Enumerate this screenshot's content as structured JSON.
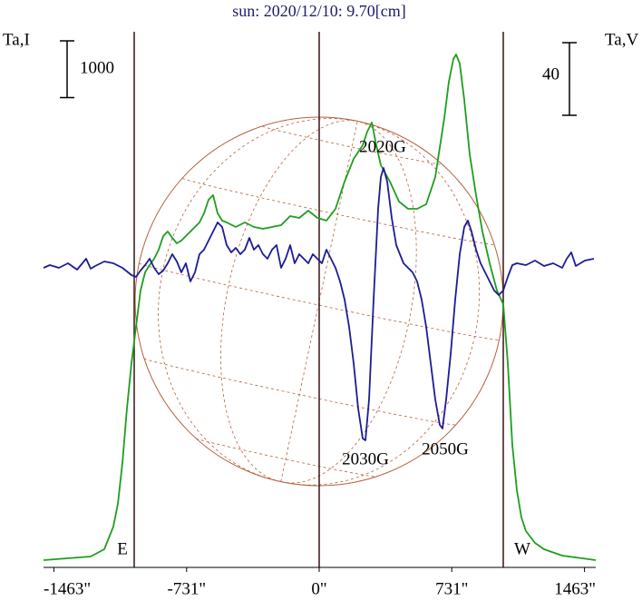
{
  "chart_data": {
    "type": "line",
    "title": "sun: 2020/12/10: 9.70[cm]",
    "y_label": "Ta,I",
    "y2_label": "Ta,V",
    "y_scale_bar": 1000,
    "y2_scale_bar": 40,
    "xlim": [
      -1520,
      1525
    ],
    "ylim": [
      -128,
      9472
    ],
    "y2lim": [
      -166,
      134
    ],
    "xticks": [
      {
        "value": -1463,
        "label": "-1463\""
      },
      {
        "value": -731,
        "label": "-731\""
      },
      {
        "value": 0,
        "label": "0\""
      },
      {
        "value": 731,
        "label": "731\""
      },
      {
        "value": 1463,
        "label": "1463\""
      }
    ],
    "vlines": [
      -1020,
      0,
      1015
    ],
    "limb_labels": [
      "E",
      "W"
    ],
    "annotations": [
      "2020G",
      "2030G",
      "2050G"
    ],
    "series": [
      {
        "color": "#1e9e1e",
        "axis": "y",
        "x": [
          -1520,
          -1260,
          -1185,
          -1135,
          -1110,
          -1085,
          -1060,
          -1035,
          -1010,
          -985,
          -960,
          -935,
          -910,
          -885,
          -860,
          -835,
          -810,
          -785,
          -760,
          -735,
          -710,
          -685,
          -660,
          -635,
          -610,
          -585,
          -560,
          -535,
          -510,
          -460,
          -410,
          -360,
          -310,
          -260,
          -210,
          -160,
          -110,
          -60,
          -10,
          40,
          90,
          140,
          190,
          240,
          265,
          290,
          315,
          340,
          390,
          440,
          490,
          540,
          590,
          640,
          690,
          715,
          740,
          755,
          775,
          800,
          830,
          865,
          900,
          940,
          980,
          1015,
          1040,
          1065,
          1090,
          1115,
          1140,
          1190,
          1240,
          1340,
          1525
        ],
        "values": [
          0,
          64,
          192,
          592,
          992,
          1712,
          2672,
          3472,
          4112,
          4752,
          5072,
          5200,
          5312,
          5472,
          5712,
          5792,
          5680,
          5584,
          5632,
          5712,
          5792,
          5872,
          5952,
          6112,
          6352,
          6432,
          6112,
          5984,
          5952,
          5872,
          5952,
          5872,
          5840,
          5872,
          5904,
          6064,
          6032,
          6160,
          6032,
          5984,
          6192,
          6672,
          7072,
          7312,
          7552,
          7712,
          7312,
          6960,
          6672,
          6320,
          6192,
          6192,
          6272,
          6752,
          7792,
          8432,
          8832,
          8912,
          8752,
          8112,
          7152,
          6432,
          5792,
          5232,
          4752,
          4512,
          3472,
          2032,
          1232,
          752,
          512,
          304,
          192,
          80,
          0
        ]
      },
      {
        "color": "#1c1c96",
        "axis": "y2",
        "x": [
          -1520,
          -1485,
          -1435,
          -1385,
          -1335,
          -1285,
          -1260,
          -1235,
          -1185,
          -1135,
          -1085,
          -1035,
          -1010,
          -985,
          -960,
          -935,
          -910,
          -885,
          -860,
          -835,
          -810,
          -785,
          -760,
          -735,
          -710,
          -685,
          -660,
          -635,
          -610,
          -585,
          -560,
          -535,
          -510,
          -485,
          -460,
          -435,
          -410,
          -385,
          -360,
          -335,
          -310,
          -285,
          -260,
          -235,
          -210,
          -185,
          -160,
          -135,
          -110,
          -85,
          -60,
          -35,
          -10,
          15,
          40,
          65,
          90,
          115,
          140,
          165,
          190,
          215,
          240,
          255,
          275,
          300,
          325,
          340,
          355,
          375,
          400,
          425,
          465,
          515,
          540,
          565,
          590,
          615,
          640,
          665,
          680,
          700,
          725,
          750,
          775,
          800,
          820,
          840,
          865,
          890,
          915,
          940,
          965,
          990,
          1015,
          1040,
          1065,
          1090,
          1140,
          1190,
          1240,
          1290,
          1340,
          1365,
          1390,
          1415,
          1465,
          1515
        ],
        "values": [
          -1,
          0.5,
          -1,
          1.5,
          -2,
          4,
          -1.5,
          0,
          2.5,
          1.5,
          -1,
          -5,
          -6,
          -2.5,
          0.5,
          4,
          -1,
          -4.5,
          -2.5,
          1.5,
          6.5,
          2.5,
          -3.5,
          1.5,
          -8.5,
          -3.5,
          6.5,
          9,
          14,
          19,
          24,
          21.5,
          11.5,
          7.5,
          10,
          6.5,
          9,
          15.5,
          9,
          11.5,
          6.5,
          4,
          9,
          11.5,
          -1,
          4,
          11.5,
          1.5,
          6.5,
          4,
          1.5,
          6.5,
          4,
          1.5,
          9,
          4,
          -1,
          -8.5,
          -18.5,
          -33.5,
          -53.5,
          -78.5,
          -95,
          -96,
          -73.5,
          -18.5,
          31.5,
          49,
          54,
          46.5,
          26.5,
          11.5,
          1.5,
          -3.5,
          -8.5,
          -18.5,
          -33.5,
          -53.5,
          -73.5,
          -87.5,
          -89.5,
          -73.5,
          -48.5,
          -18.5,
          6.5,
          21.5,
          25,
          19,
          9,
          1.5,
          -3.5,
          -8.5,
          -13.5,
          -16,
          -13.5,
          -6,
          0.5,
          1.5,
          0.5,
          3,
          0,
          1.5,
          -1,
          4,
          7.5,
          0,
          3,
          4
        ]
      }
    ]
  }
}
